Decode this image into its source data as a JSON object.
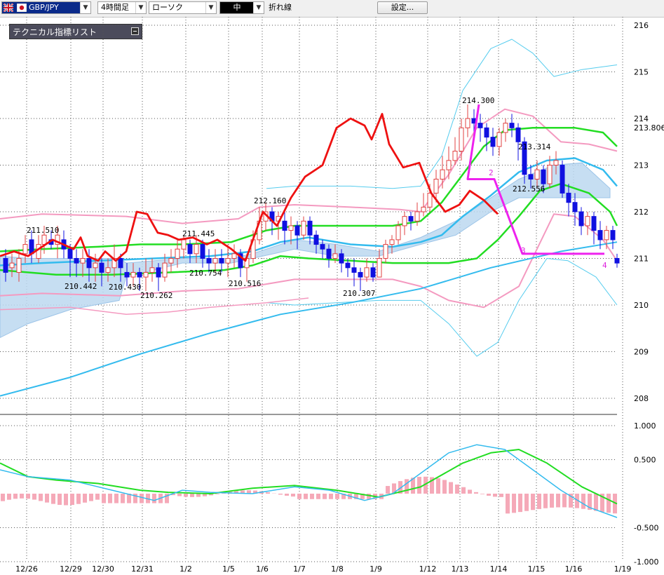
{
  "toolbar": {
    "pair": "GBP/JPY",
    "timeframe": "4時間足",
    "chart_type": "ローソク",
    "color_label": "中",
    "line_label": "折れ線",
    "settings_button": "設定..."
  },
  "indicator_panel": {
    "title": "テクニカル指標リスト"
  },
  "colors": {
    "bull_candle": "#e04040",
    "bear_candle": "#1010e0",
    "ma_green": "#22dd22",
    "ma_cyan": "#33bbee",
    "bollinger_pink": "#f49ac0",
    "bollinger_cyan": "#55ccee",
    "red_line": "#ee1111",
    "magenta_line": "#ee22ee",
    "ichimoku_cloud": "#bcd8f0",
    "macd_hist": "#f5a9b8"
  },
  "chart_data": [
    {
      "type": "candlestick",
      "yticks": [
        "216",
        "215",
        "214",
        "213",
        "212",
        "211",
        "210",
        "209",
        "208"
      ],
      "x_tick_labels": [
        "12/26",
        "12/29",
        "12/30",
        "12/31",
        "1/2",
        "1/5",
        "1/6",
        "1/7",
        "1/8",
        "1/9",
        "1/12",
        "1/13",
        "1/14",
        "1/15",
        "1/16",
        "1/19"
      ],
      "current_price_label": "213.806",
      "annotations": [
        "211.510",
        "210.442",
        "210.430",
        "210.262",
        "211.445",
        "210.754",
        "210.516",
        "212.160",
        "210.307",
        "214.300",
        "213.314",
        "212.556"
      ],
      "wave_labels": [
        "2",
        "3",
        "4"
      ],
      "ylim": [
        207.4,
        216.2
      ]
    },
    {
      "type": "line",
      "yticks": [
        "1.000",
        "0.500",
        "-0.500",
        "-1.000"
      ],
      "ylim": [
        -1.0,
        1.0
      ]
    }
  ]
}
